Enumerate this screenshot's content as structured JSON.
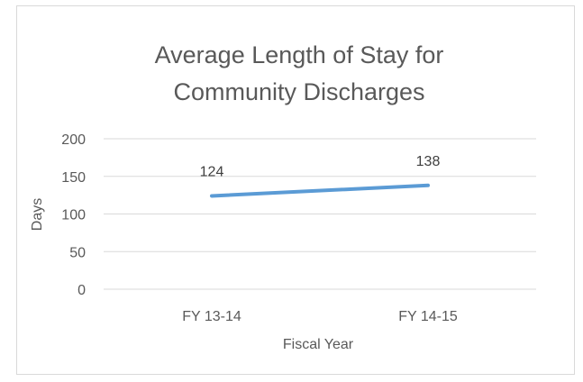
{
  "chart_data": {
    "type": "line",
    "title_lines": [
      "Average Length of Stay for",
      "Community Discharges"
    ],
    "xlabel": "Fiscal Year",
    "ylabel": "Days",
    "categories": [
      "FY 13-14",
      "FY 14-15"
    ],
    "series": [
      {
        "values": [
          124,
          138
        ],
        "color": "#5b9bd5"
      }
    ],
    "data_labels": [
      "124",
      "138"
    ],
    "ylim": [
      0,
      200
    ],
    "yticks": [
      0,
      50,
      100,
      150,
      200
    ],
    "grid": true,
    "legend": "none"
  }
}
